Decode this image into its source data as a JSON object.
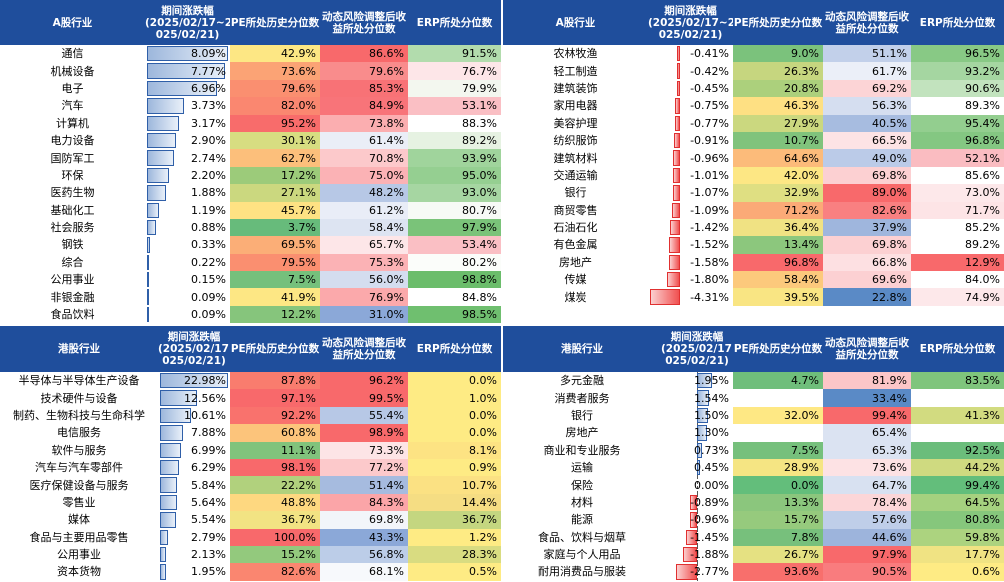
{
  "a_left": {
    "headers": {
      "name": "A股行业",
      "chg": "期间涨跌幅\n(2025/02/17~2\n025/02/21)",
      "pe": "PE所处历史分位数",
      "risk": "动态风险调整后收益所处分位数",
      "erp": "ERP所处分位数"
    },
    "rows": [
      {
        "name": "通信",
        "chg": "8.09%",
        "v": 8.09,
        "pe": "42.9%",
        "risk": "86.6%",
        "erp": "91.5%",
        "pec": "#fde784",
        "rc": "#f8696b",
        "ec": "#b2dcad"
      },
      {
        "name": "机械设备",
        "chg": "7.77%",
        "v": 7.77,
        "pe": "73.6%",
        "risk": "79.6%",
        "erp": "76.7%",
        "pec": "#fba375",
        "rc": "#f98c8c",
        "ec": "#fde6e8"
      },
      {
        "name": "电子",
        "chg": "6.96%",
        "v": 6.96,
        "pe": "79.6%",
        "risk": "85.3%",
        "erp": "79.9%",
        "pec": "#fa8f70",
        "rc": "#f87276",
        "ec": "#f3f7ef"
      },
      {
        "name": "汽车",
        "chg": "3.73%",
        "v": 3.73,
        "pe": "82.0%",
        "risk": "84.9%",
        "erp": "53.1%",
        "pec": "#fa8770",
        "rc": "#f87479",
        "ec": "#fabfc4"
      },
      {
        "name": "计算机",
        "chg": "3.17%",
        "v": 3.17,
        "pe": "95.2%",
        "risk": "73.8%",
        "erp": "88.3%",
        "pec": "#f86c6b",
        "rc": "#fbaeb0",
        "ec": "#ffffff"
      },
      {
        "name": "电力设备",
        "chg": "2.90%",
        "v": 2.9,
        "pe": "30.1%",
        "risk": "61.4%",
        "erp": "89.2%",
        "pec": "#d7dd81",
        "rc": "#eaeef7",
        "ec": "#e6f2e2"
      },
      {
        "name": "国防军工",
        "chg": "2.74%",
        "v": 2.74,
        "pe": "62.7%",
        "risk": "70.8%",
        "erp": "93.9%",
        "pec": "#fcbf7b",
        "rc": "#fcc9cb",
        "ec": "#a0d49c"
      },
      {
        "name": "环保",
        "chg": "2.20%",
        "v": 2.2,
        "pe": "17.2%",
        "risk": "75.0%",
        "erp": "95.0%",
        "pec": "#9ccb7a",
        "rc": "#fbb2b5",
        "ec": "#95cf91"
      },
      {
        "name": "医药生物",
        "chg": "1.88%",
        "v": 1.88,
        "pe": "27.1%",
        "risk": "48.2%",
        "erp": "93.0%",
        "pec": "#cbd87f",
        "rc": "#b7c8e6",
        "ec": "#a6d6a2"
      },
      {
        "name": "基础化工",
        "chg": "1.19%",
        "v": 1.19,
        "pe": "45.7%",
        "risk": "61.2%",
        "erp": "80.7%",
        "pec": "#fee283",
        "rc": "#e9edf7",
        "ec": "#f7faf6"
      },
      {
        "name": "社会服务",
        "chg": "0.88%",
        "v": 0.88,
        "pe": "3.7%",
        "risk": "58.4%",
        "erp": "97.9%",
        "pec": "#67bb7b",
        "rc": "#dde4f2",
        "ec": "#7ac379"
      },
      {
        "name": "钢铁",
        "chg": "0.33%",
        "v": 0.33,
        "pe": "69.5%",
        "risk": "65.7%",
        "erp": "53.4%",
        "pec": "#fbae77",
        "rc": "#fde6e8",
        "ec": "#fabfc4"
      },
      {
        "name": "综合",
        "chg": "0.22%",
        "v": 0.22,
        "pe": "79.5%",
        "risk": "75.3%",
        "erp": "80.2%",
        "pec": "#fa8f70",
        "rc": "#fbb2b5",
        "ec": "#fbfdfa"
      },
      {
        "name": "公用事业",
        "chg": "0.15%",
        "v": 0.15,
        "pe": "7.5%",
        "risk": "56.0%",
        "erp": "98.8%",
        "pec": "#75c07c",
        "rc": "#d4ddef",
        "ec": "#6bbd6b"
      },
      {
        "name": "非银金融",
        "chg": "0.09%",
        "v": 0.09,
        "pe": "41.9%",
        "risk": "76.9%",
        "erp": "84.8%",
        "pec": "#fde784",
        "rc": "#fba9ab",
        "ec": "#ffffff"
      },
      {
        "name": "食品饮料",
        "chg": "0.09%",
        "v": 0.09,
        "pe": "12.2%",
        "risk": "31.0%",
        "erp": "98.5%",
        "pec": "#86c57c",
        "rc": "#8ba8d8",
        "ec": "#6fbf6f"
      }
    ]
  },
  "a_right": {
    "headers": {
      "name": "A股行业",
      "chg": "期间涨跌幅\n(2025/02/17~2\n025/02/21)",
      "pe": "PE所处历史分位数",
      "risk": "动态风险调整后收益所处分位数",
      "erp": "ERP所处分位数"
    },
    "rows": [
      {
        "name": "农林牧渔",
        "chg": "-0.41%",
        "v": -0.41,
        "pe": "9.0%",
        "risk": "51.1%",
        "erp": "96.5%",
        "pec": "#7bc27c",
        "rc": "#c2d0ea",
        "ec": "#88c985"
      },
      {
        "name": "轻工制造",
        "chg": "-0.42%",
        "v": -0.42,
        "pe": "26.3%",
        "risk": "61.7%",
        "erp": "93.2%",
        "pec": "#c6d67f",
        "rc": "#ebeff8",
        "ec": "#a5d6a1"
      },
      {
        "name": "建筑装饰",
        "chg": "-0.45%",
        "v": -0.45,
        "pe": "20.8%",
        "risk": "69.2%",
        "erp": "90.6%",
        "pec": "#acd07c",
        "rc": "#fcd4d6",
        "ec": "#c2e3be"
      },
      {
        "name": "家用电器",
        "chg": "-0.75%",
        "v": -0.75,
        "pe": "46.3%",
        "risk": "56.3%",
        "erp": "89.3%",
        "pec": "#fee083",
        "rc": "#d5def0",
        "ec": "#ffffff"
      },
      {
        "name": "美容护理",
        "chg": "-0.77%",
        "v": -0.77,
        "pe": "27.9%",
        "risk": "40.5%",
        "erp": "95.4%",
        "pec": "#cbd87f",
        "rc": "#a7bce0",
        "ec": "#93ce8f"
      },
      {
        "name": "纺织服饰",
        "chg": "-0.91%",
        "v": -0.91,
        "pe": "10.7%",
        "risk": "66.5%",
        "erp": "96.8%",
        "pec": "#80c37c",
        "rc": "#fde3e5",
        "ec": "#84c782"
      },
      {
        "name": "建筑材料",
        "chg": "-0.96%",
        "v": -0.96,
        "pe": "64.6%",
        "risk": "49.0%",
        "erp": "52.1%",
        "pec": "#fcbb7a",
        "rc": "#bbcbe8",
        "ec": "#fabcc1"
      },
      {
        "name": "交通运输",
        "chg": "-1.01%",
        "v": -1.01,
        "pe": "42.0%",
        "risk": "69.8%",
        "erp": "85.6%",
        "pec": "#fde784",
        "rc": "#fcd0d2",
        "ec": "#ffffff"
      },
      {
        "name": "银行",
        "chg": "-1.07%",
        "v": -1.07,
        "pe": "32.9%",
        "risk": "89.0%",
        "erp": "73.0%",
        "pec": "#dfdf82",
        "rc": "#f8696b",
        "ec": "#fde8ea"
      },
      {
        "name": "商贸零售",
        "chg": "-1.09%",
        "v": -1.09,
        "pe": "71.2%",
        "risk": "82.6%",
        "erp": "71.7%",
        "pec": "#fbaa77",
        "rc": "#f98081",
        "ec": "#fde4e6"
      },
      {
        "name": "石油石化",
        "chg": "-1.42%",
        "v": -1.42,
        "pe": "36.4%",
        "risk": "37.9%",
        "erp": "85.2%",
        "pec": "#f0e283",
        "rc": "#9fb6dd",
        "ec": "#ffffff"
      },
      {
        "name": "有色金属",
        "chg": "-1.52%",
        "v": -1.52,
        "pe": "13.4%",
        "risk": "69.8%",
        "erp": "89.2%",
        "pec": "#8cc77d",
        "rc": "#fcd0d2",
        "ec": "#ffffff"
      },
      {
        "name": "房地产",
        "chg": "-1.58%",
        "v": -1.58,
        "pe": "96.8%",
        "risk": "66.8%",
        "erp": "12.9%",
        "pec": "#f8696b",
        "rc": "#fde0e2",
        "ec": "#f8696b"
      },
      {
        "name": "传媒",
        "chg": "-1.80%",
        "v": -1.8,
        "pe": "58.4%",
        "risk": "69.6%",
        "erp": "84.0%",
        "pec": "#fcc97c",
        "rc": "#fcd0d2",
        "ec": "#ffffff"
      },
      {
        "name": "煤炭",
        "chg": "-4.31%",
        "v": -4.31,
        "pe": "39.5%",
        "risk": "22.8%",
        "erp": "74.9%",
        "pec": "#f9e583",
        "rc": "#5a8ac6",
        "ec": "#fde8ea"
      }
    ]
  },
  "hk_left": {
    "headers": {
      "name": "港股行业",
      "chg": "期间涨跌幅\n(2025/02/17~2\n025/02/21)",
      "pe": "PE所处历史分位数",
      "risk": "动态风险调整后收益所处分位数",
      "erp": "ERP所处分位数"
    },
    "rows": [
      {
        "name": "半导体与半导体生产设备",
        "chg": "22.98%",
        "v": 22.98,
        "pe": "87.8%",
        "risk": "96.2%",
        "erp": "0.0%",
        "pec": "#f97c6e",
        "rc": "#f8696b",
        "ec": "#feeb84"
      },
      {
        "name": "技术硬件与设备",
        "chg": "12.56%",
        "v": 12.56,
        "pe": "97.1%",
        "risk": "99.5%",
        "erp": "1.0%",
        "pec": "#f8696b",
        "rc": "#f8696b",
        "ec": "#feeb84"
      },
      {
        "name": "制药、生物科技与生命科学",
        "chg": "10.61%",
        "v": 10.61,
        "pe": "92.2%",
        "risk": "55.4%",
        "erp": "0.0%",
        "pec": "#f9726d",
        "rc": "#b7c8e6",
        "ec": "#feeb84"
      },
      {
        "name": "电信服务",
        "chg": "7.88%",
        "v": 7.88,
        "pe": "60.8%",
        "risk": "98.9%",
        "erp": "0.0%",
        "pec": "#fcc47b",
        "rc": "#f8696b",
        "ec": "#feeb84"
      },
      {
        "name": "软件与服务",
        "chg": "6.99%",
        "v": 6.99,
        "pe": "11.1%",
        "risk": "73.3%",
        "erp": "8.1%",
        "pec": "#81c37c",
        "rc": "#fde4e6",
        "ec": "#fde383"
      },
      {
        "name": "汽车与汽车零部件",
        "chg": "6.29%",
        "v": 6.29,
        "pe": "98.1%",
        "risk": "77.2%",
        "erp": "0.9%",
        "pec": "#f8696b",
        "rc": "#fcc9cb",
        "ec": "#feeb84"
      },
      {
        "name": "医疗保健设备与服务",
        "chg": "5.84%",
        "v": 5.84,
        "pe": "22.2%",
        "risk": "51.4%",
        "erp": "10.7%",
        "pec": "#b1d17d",
        "rc": "#a6bbdf",
        "ec": "#fbe183"
      },
      {
        "name": "零售业",
        "chg": "5.64%",
        "v": 5.64,
        "pe": "48.8%",
        "risk": "84.3%",
        "erp": "14.4%",
        "pec": "#fed880",
        "rc": "#fba5a8",
        "ec": "#f5dd83"
      },
      {
        "name": "媒体",
        "chg": "5.54%",
        "v": 5.54,
        "pe": "36.7%",
        "risk": "69.8%",
        "erp": "36.7%",
        "pec": "#f2e383",
        "rc": "#f2f5fa",
        "ec": "#c4d680"
      },
      {
        "name": "食品与主要用品零售",
        "chg": "2.79%",
        "v": 2.79,
        "pe": "100.0%",
        "risk": "43.3%",
        "erp": "1.2%",
        "pec": "#f8696b",
        "rc": "#8ba8d8",
        "ec": "#feeb84"
      },
      {
        "name": "公用事业",
        "chg": "2.13%",
        "v": 2.13,
        "pe": "15.2%",
        "risk": "56.8%",
        "erp": "28.3%",
        "pec": "#93c97d",
        "rc": "#bccde8",
        "ec": "#d9dc81"
      },
      {
        "name": "资本货物",
        "chg": "1.95%",
        "v": 1.95,
        "pe": "82.6%",
        "risk": "68.1%",
        "erp": "0.5%",
        "pec": "#fa8670",
        "rc": "#f7f9fc",
        "ec": "#feeb84"
      }
    ]
  },
  "hk_right": {
    "headers": {
      "name": "港股行业",
      "chg": "期间涨跌幅\n(2025/02/17~2\n025/02/21)",
      "pe": "PE所处历史分位数",
      "risk": "动态风险调整后收益所处分位数",
      "erp": "ERP所处分位数"
    },
    "rows": [
      {
        "name": "多元金融",
        "chg": "1.95%",
        "v": 1.95,
        "pe": "4.7%",
        "risk": "81.9%",
        "erp": "83.5%",
        "pec": "#6fbe7b",
        "rc": "#fcc6c8",
        "ec": "#7fc57c"
      },
      {
        "name": "消费者服务",
        "chg": "1.54%",
        "v": 1.54,
        "pe": "",
        "risk": "33.4%",
        "erp": "",
        "pec": "#ffffff",
        "rc": "#5a8ac6",
        "ec": "#ffffff"
      },
      {
        "name": "银行",
        "chg": "1.50%",
        "v": 1.5,
        "pe": "32.0%",
        "risk": "99.4%",
        "erp": "41.3%",
        "pec": "#fee884",
        "rc": "#f8696b",
        "ec": "#d2db80"
      },
      {
        "name": "房地产",
        "chg": "1.30%",
        "v": 1.3,
        "pe": "",
        "risk": "65.4%",
        "erp": "",
        "pec": "#ffffff",
        "rc": "#dbe3f2",
        "ec": "#ffffff"
      },
      {
        "name": "商业和专业服务",
        "chg": "0.73%",
        "v": 0.73,
        "pe": "7.5%",
        "risk": "65.3%",
        "erp": "92.5%",
        "pec": "#76c07c",
        "rc": "#dbe3f2",
        "ec": "#6bbd7b"
      },
      {
        "name": "运输",
        "chg": "0.45%",
        "v": 0.45,
        "pe": "28.9%",
        "risk": "73.6%",
        "erp": "44.2%",
        "pec": "#f5e583",
        "rc": "#fde2e4",
        "ec": "#cfda80"
      },
      {
        "name": "保险",
        "chg": "0.00%",
        "v": 0.0,
        "pe": "0.0%",
        "risk": "64.7%",
        "erp": "99.4%",
        "pec": "#63be7b",
        "rc": "#d8e1f1",
        "ec": "#63be7b"
      },
      {
        "name": "材料",
        "chg": "-0.89%",
        "v": -0.89,
        "pe": "13.3%",
        "risk": "78.4%",
        "erp": "64.5%",
        "pec": "#8bc67d",
        "rc": "#fcd6d8",
        "ec": "#a5d17f"
      },
      {
        "name": "能源",
        "chg": "-0.96%",
        "v": -0.96,
        "pe": "15.7%",
        "risk": "57.6%",
        "erp": "80.8%",
        "pec": "#96ca7d",
        "rc": "#bfcee9",
        "ec": "#86c77c"
      },
      {
        "name": "食品、饮料与烟草",
        "chg": "-1.45%",
        "v": -1.45,
        "pe": "7.8%",
        "risk": "44.6%",
        "erp": "59.8%",
        "pec": "#77c07c",
        "rc": "#9db4dc",
        "ec": "#acd37f"
      },
      {
        "name": "家庭与个人用品",
        "chg": "-1.88%",
        "v": -1.88,
        "pe": "26.7%",
        "risk": "97.9%",
        "erp": "17.7%",
        "pec": "#e5e182",
        "rc": "#f8696b",
        "ec": "#f0e383"
      },
      {
        "name": "耐用消费品与服装",
        "chg": "-2.77%",
        "v": -2.77,
        "pe": "93.6%",
        "risk": "90.5%",
        "erp": "0.6%",
        "pec": "#f86f6c",
        "rc": "#f97c7e",
        "ec": "#feeb84"
      }
    ]
  }
}
